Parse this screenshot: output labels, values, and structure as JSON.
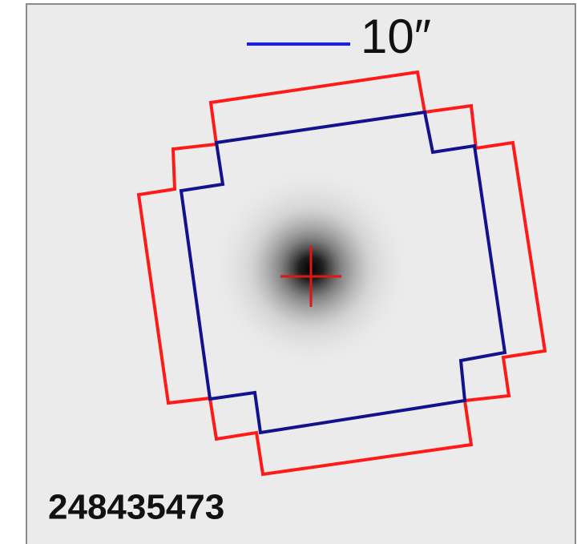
{
  "scale_bar": {
    "label": "10″"
  },
  "target_id": "248435473"
}
